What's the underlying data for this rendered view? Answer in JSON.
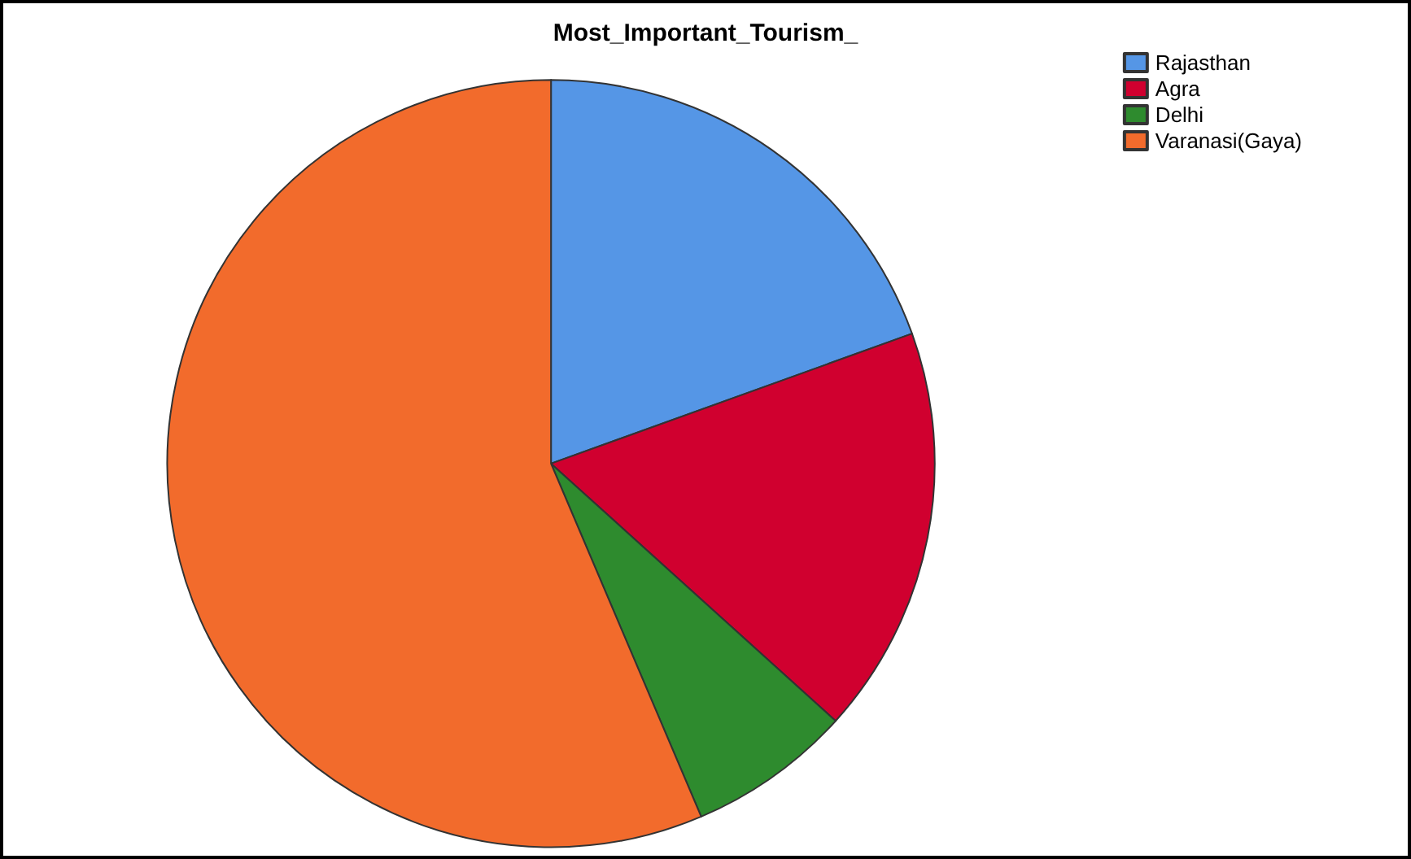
{
  "chart_data": {
    "type": "pie",
    "title": "Most_Important_Tourism_",
    "categories": [
      "Rajasthan",
      "Agra",
      "Delhi",
      "Varanasi(Gaya)"
    ],
    "values": [
      19.5,
      17.2,
      6.9,
      56.4
    ],
    "colors": [
      "#5596e6",
      "#d0002f",
      "#2e8b2e",
      "#f26b2c"
    ],
    "legend": "top right"
  }
}
